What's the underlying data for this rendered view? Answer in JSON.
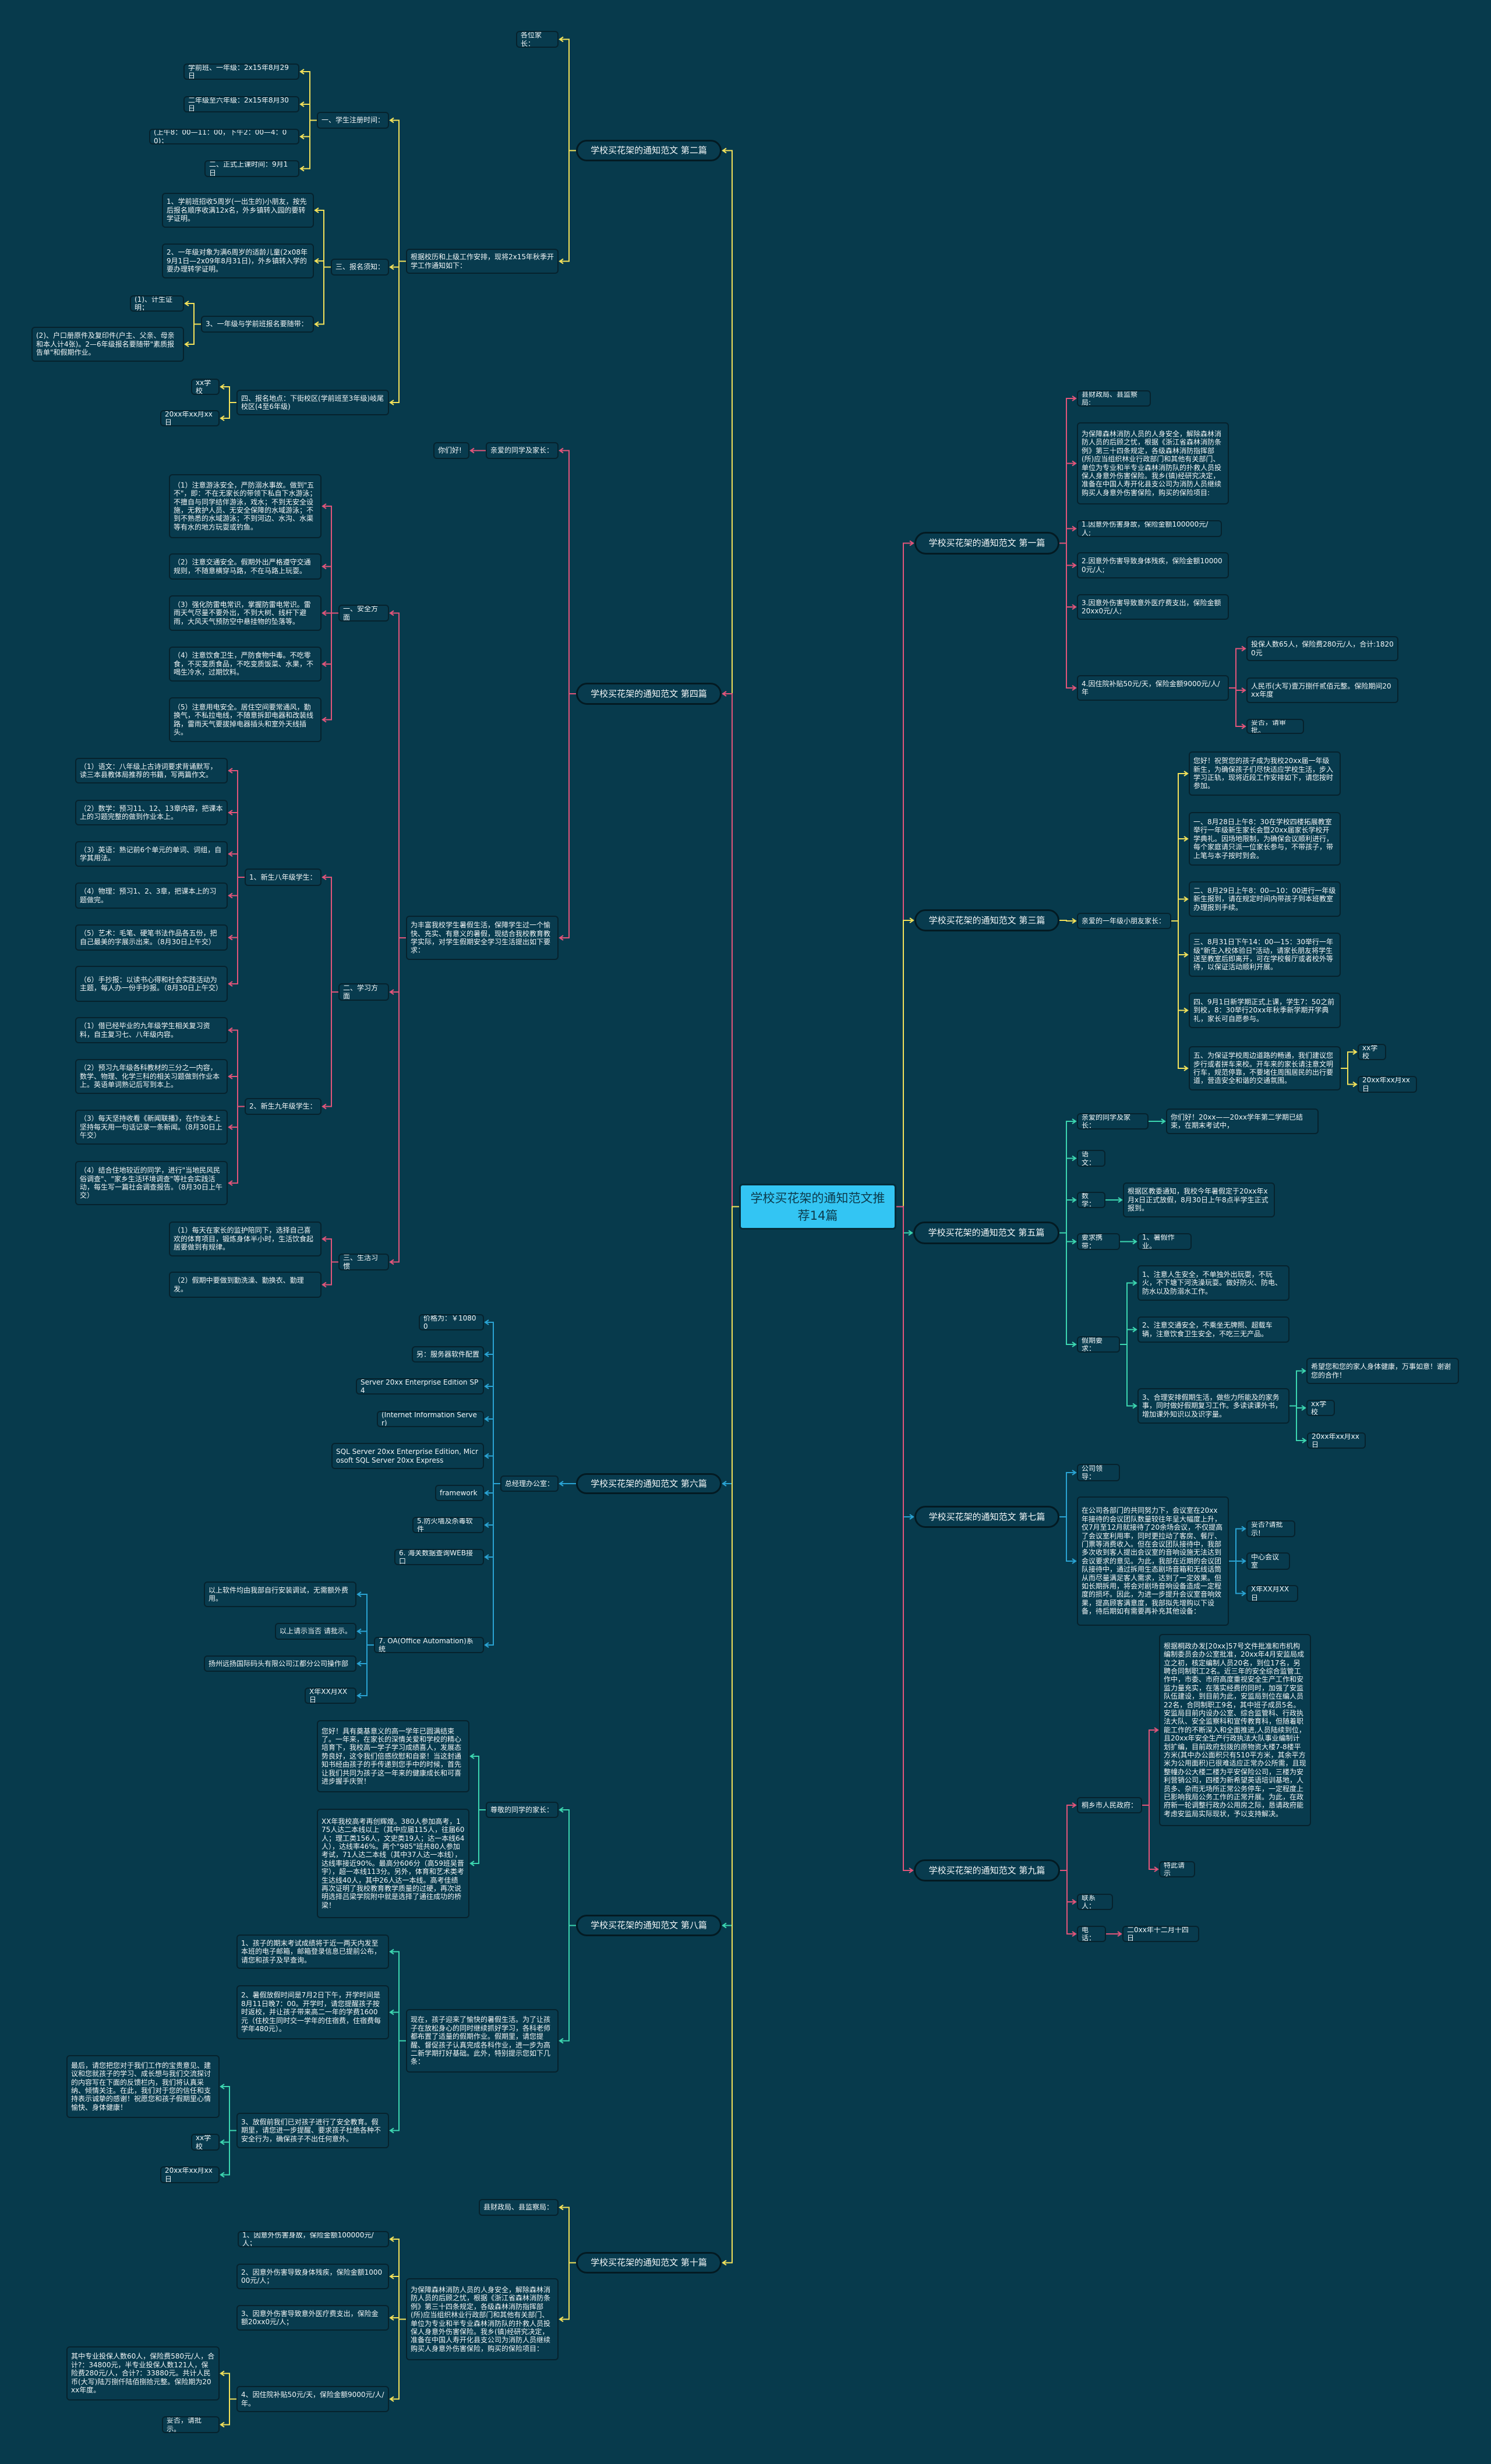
{
  "title": "学校买花架的通知范文推荐14篇",
  "colors": {
    "background": "#073a4c",
    "node_fill": "#083b4e",
    "root_fill": "#33c5f3",
    "b1": "#e2557a",
    "b2": "#f3e15a",
    "b3": "#f3e15a",
    "b4": "#e2557a",
    "b5": "#3cd6b0",
    "b6": "#2aa3d3",
    "b7": "#2aa3d3",
    "b8": "#3cd6b0",
    "b9": "#e2557a",
    "b10": "#f3e15a"
  },
  "b1": {
    "title": "学校买花架的通知范文 第一篇",
    "items": [
      "县财政局、县监察局:",
      "为保障森林消防人员的人身安全，解除森林消防人员的后顾之忧，根据《浙江省森林消防条例》第三十四条规定，各级森林消防指挥部(所)应当组织林业行政部门和其他有关部门、单位为专业和半专业森林消防队的扑救人员投保人身意外伤害保险。我乡(镇)经研究决定，准备在中国人寿开化县支公司为消防人员继续购买人身意外伤害保险，购买的保险项目:",
      "1.因意外伤害身故，保险金额100000元/人;",
      "2.因意外伤害导致身体残疾，保险金额100000元/人;",
      "3.因意外伤害导致意外医疗费支出，保险金额20xx0元/人;",
      "4.因住院补贴50元/天，保险金额9000元/人/年",
      "投保人数65人，保险费280元/人，合计:18200元",
      "人民币(大写)壹万捌仟贰佰元整。保险期间20xx年度",
      "妥否，请审批。"
    ]
  },
  "b2": {
    "title": "学校买花架的通知范文 第二篇",
    "items": [
      "各位家长：",
      "根据校历和上级工作安排，现将2x15年秋季开学工作通知如下：",
      "一、学生注册时间：",
      "学前班、一年级：2x15年8月29日",
      "二年级至六年级：2x15年8月30日",
      "(上午8：00—11：00，下午2：00—4：00)；",
      "二、正式上课时间：9月1日",
      "三、报名须知：",
      "1、学前班招收5周岁(一出生的)小朋友，按先后报名顺序收满12x名，外乡镇转入园的要转学证明。",
      "2、一年级对象为满6周岁的适龄儿童(2x08年9月1日—2x09年8月31日)，外乡镇转入学的要办理转学证明。",
      "3、一年级与学前班报名要随带：",
      "(1)、计生证明；",
      "(2)、户口册原件及复印件(户主、父亲、母亲和本人计4张)。2—6年级报名要随带\"素质报告单\"和假期作业。",
      "四、报名地点：下街校区(学前班至3年级)岐尾校区(4至6年级)",
      "xx学校",
      "20xx年xx月xx日"
    ]
  },
  "b3": {
    "title": "学校买花架的通知范文 第三篇",
    "items": [
      "亲爱的一年级小朋友家长：",
      "您好！祝贺您的孩子成为我校20xx届一年级新生，为确保孩子们尽快适应学校生活，步入学习正轨，现将近段工作安排如下，请您按时参加。",
      "一、8月28日上午8：30在学校四楼拓展教室举行一年级新生家长会暨20xx届家长学校开学典礼。因场地限制，为确保会议顺利进行，每个家庭请只派一位家长参与，不带孩子，带上笔与本子按时到会。",
      "二、8月29日上午8：00—10：00进行一年级新生报到，请在规定时间内带孩子到本班教室办理报到手续。",
      "三、8月31日下午14：00—15：30举行一年级\"新生入校体验日\"活动，请家长朋友将学生送至教室后即离开，可在学校餐厅或者校外等待，以保证活动顺利开展。",
      "四、9月1日新学期正式上课，学生7：50之前到校，8：30举行20xx年秋季新学期开学典礼，家长可自愿参与。",
      "五、为保证学校周边道路的畅通，我们建议您步行或者拼车来校。开车来的家长请注意文明行车，规范停靠，不要堵住周围居民的出行要道，营造安全和谐的交通氛围。",
      "xx学校",
      "20xx年xx月xx日"
    ]
  },
  "b4": {
    "title": "学校买花架的通知范文 第四篇",
    "items": [
      "亲爱的同学及家长：",
      "你们好!",
      "为丰富我校学生暑假生活，保障学生过一个愉快、充实、有意义的暑假，现结合我校教育教学实际，对学生假期安全学习生活提出如下要求：",
      "一、安全方面",
      "（1）注意游泳安全，严防溺水事故。做到\"五不\"，即：不在无家长的带领下私自下水游泳；不擅自与同学结伴游泳，戏水；不到无安全设施，无救护人员、无安全保障的水域游泳；不到不熟悉的水域游泳；不到河边、水沟、水渠等有水的地方玩耍或钓鱼。",
      "（2）注意交通安全。假期外出严格遵守交通规则，不随意横穿马路，不在马路上玩耍。",
      "（3）强化防雷电常识，掌握防雷电常识。雷雨天气尽量不要外出，不到大树、线杆下避雨，大风天气预防空中悬挂物的坠落等。",
      "（4）注意饮食卫生，严防食物中毒。不吃零食，不买变质食品，不吃变质饭菜、水果，不喝生冷水，过期饮料。",
      "（5）注意用电安全。居住空间要常通风，勤换气，不私拉电线，不随意拆卸电器和改装线路，雷雨天气要拔掉电器插头和室外天线插头。",
      "二、学习方面",
      "1、新生八年级学生：",
      "（1）语文：八年级上古诗词要求背诵默写，读三本县教体局推荐的书籍，写两篇作文。",
      "（2）数学：预习11、12、13章内容，把课本上的习题完整的做到作业本上。",
      "（3）英语：熟记前6个单元的单词、词组，自学其用法。",
      "（4）物理：预习1、2、3章，把课本上的习题做完。",
      "（5）艺术：毛笔、硬笔书法作品各五份，把自己最美的字展示出来。（8月30日上午交）",
      "（6）手抄报：以读书心得和社会实践活动为主题，每人办一份手抄报。（8月30日上午交）",
      "2、新生九年级学生：",
      "（1）借已经毕业的九年级学生相关复习资料，自主复习七、八年级内容。",
      "（2）预习九年级各科教材的三分之一内容，数学、物理、化学三科的相关习题做到作业本上。英语单词熟记后写到本上。",
      "（3）每天坚持收看《新闻联播》，在作业本上坚持每天用一句话记录一条新闻。（8月30日上午交）",
      "（4）结合住地较近的同学，进行\"当地民风民俗调查\"、\"家乡生活环境调查\"等社会实践活动，每生写一篇社会调查报告。（8月30日上午交）",
      "三、生活习惯",
      "（1）每天在家长的监护陪同下，选择自己喜欢的体育项目，锻炼身体半小时，生活饮食起居要做到有规律。",
      "（2）假期中要做到勤洗澡、勤换衣、勤理发。"
    ]
  },
  "b5": {
    "title": "学校买花架的通知范文 第五篇",
    "items": [
      "亲爱的同学及家长：",
      "你们好！20xx——20xx学年第二学期已结束，在期末考试中，",
      "语文：",
      "数学：",
      "根据区教委通知，我校今年暑假定于20xx年x月x日正式放假，8月30日上午8点半学生正式报到。",
      "要求携带：",
      "1、暑假作业。",
      "假期要求：",
      "1、注意人生安全，不单独外出玩耍，不玩火，不下塘下河洗澡玩耍。做好防火、防电、防水以及防溺水工作。",
      "2、注意交通安全，不乘坐无牌照、超载车辆，注意饮食卫生安全，不吃三无产品。",
      "3、合理安排假期生活，做些力所能及的家务事，同时做好假期复习工作。多读读课外书，增加课外知识以及识字量。",
      "希望您和您的家人身体健康，万事如意！谢谢您的合作！",
      "xx学校",
      "20xx年xx月xx日"
    ]
  },
  "b6": {
    "title": "学校买花架的通知范文 第六篇",
    "items": [
      "总经理办公室：",
      "价格为：￥10800",
      "另：服务器软件配置",
      "Server 20xx Enterprise Edition SP4",
      "(Internet Information Server)",
      "SQL Server 20xx Enterprise Edition, Microsoft SQL Server 20xx Express",
      "framework",
      "5.防火墙及杀毒软件",
      "6. 海关数据查询WEB接口",
      "7. OA(Office Automation)系统",
      "以上软件均由我部自行安装调试，无需额外费用。",
      "以上请示当否 请批示。",
      "扬州远扬国际码头有限公司江都分公司操作部",
      "X年XX月XX日"
    ]
  },
  "b7": {
    "title": "学校买花架的通知范文 第七篇",
    "items": [
      "公司领导：",
      "在公司各部门的共同努力下，会议室在20xx年接待的会议团队数量较往年呈大幅度上升，仅7月至12月就接待了20余场会议，不仅提高了会议室利用率，同时更拉动了客房、餐厅、门票等消费收入。但在会议团队接待中，我部多次收到客人提出会议室的音响设施无法达到会议要求的意见。为此，我部在近期的会议团队接待中，通过拆用生态剧场音箱和无线话筒从而尽量满足客人需求，达到了一定效果。但如长期拆用，将会对剧场音响设备造成一定程度的损坏。因此，为进一步提升会议室音响效果，提高顾客满意度，我部拟先增购以下设备，待后期如有需要再补充其他设备：",
      "妥否?请批示!",
      "中心会议室",
      "X年XX月XX日"
    ]
  },
  "b8": {
    "title": "学校买花架的通知范文 第八篇",
    "items": [
      "尊敬的同学的家长：",
      "您好！具有奠基意义的高一学年已圆满结束了。一年来，在家长的深情关爱和学校的精心培育下，我校高一学子学习成绩喜人，发展态势良好，这令我们倍感欣慰和自豪！当这封通知书经由孩子的手传递到您手中的时候，首先让我们共同为孩子这一年来的健康成长和可喜进步握手庆贺！",
      "XX年我校高考再创辉煌。380人参加高考，175人达二本线以上（其中应届115人，往届60人；理工类156人，文史类19人；达一本线64人），达线率46%。两个\"985\"班共80人参加考试，71人达二本线（其中37人达一本线），达线率接近90%。最高分606分（高59班吴晋宇），超一本线113分。另外，体育和艺术类考生达线40人，其中26人达一本线。高考佳绩再次证明了我校教育教学质量的过硬，再次说明选择吕梁学院附中就是选择了通往成功的桥梁！",
      "现在，孩子迎来了愉快的暑假生活。为了让孩子在放松身心的同时继续抓好学习，各科老师都布置了适量的假期作业。假期里，请您提醒、督促孩子认真完成各科作业，进一步为高二新学期打好基础。此外，特别提示您如下几条：",
      "1、孩子的期末考试成绩将于近一两天内发至本班的电子邮箱，邮箱登录信息已提前公布，请您和孩子及早查询。",
      "2、暑假放假时间是7月2日下午，开学时间是8月11日晚7：00。开学时，请您提醒孩子按时返校，并让孩子带来高二一年的学费1600元（住校生同时交一学年的住宿费，住宿费每学年480元）。",
      "3、放假前我们已对孩子进行了安全教育。假期里，请您进一步提醒、要求孩子杜绝各种不安全行为，确保孩子不出任何意外。",
      "最后，请您把您对于我们工作的宝贵意见、建议和您就孩子的学习、成长想与我们交流探讨的内容写在下面的反馈栏内，我们将认真采纳、倾情关注。在此，我们对于您的信任和支持表示诚挚的感谢！祝愿您和孩子假期里心情愉快、身体健康！",
      "xx学校",
      "20xx年xx月xx日"
    ]
  },
  "b9": {
    "title": "学校买花架的通知范文 第九篇",
    "items": [
      "桐乡市人民政府：",
      "根据桐政办发[20xx]57号文件批准和市机构编制委员会办公室批准，20xx年4月安监局成立之初，核定编制人员20名，到位17名，另聘合同制职工2名。近三年的安全综合监管工作中，市委、市府高度重视安全生产工作和安监力量充实，在落实经费的同时，加强了安监队伍建设，到目前为此，安监局到位在编人员22名，合同制职工9名，其中班子成员5名。安监局目前内设办公室、综合监管科、行政执法大队、安全监察科和宣传教育科，但随着职能工作的不断深入和全面推进,人员陆续到位，且20xx年安全生产行政执法大队事业编制计划扩编，目前政府划拨的原物资大楼7-8楼平方米(其中办公面积只有510平方米，其余平方米为公用面积)已很难适应正常办公所需，且现整幢办公大楼二楼为平安保险公司，三楼为安利营销公司，四楼为新希望英语培训基地，人员多、杂而无场所正常公务停车，一定程度上已影响我局公务工作的正常开展。为此，在政府新一轮调整行政办公用房之际，恳请政府能考虑安监局实际现状，予以支持解决。",
      "特此请示",
      "联系人：",
      "电话：",
      "二0xx年十二月十四日"
    ]
  },
  "b10": {
    "title": "学校买花架的通知范文 第十篇",
    "items": [
      "县财政局、县监察局：",
      "为保障森林消防人员的人身安全，解除森林消防人员的后顾之忧，根据《浙江省森林消防条例》第三十四条规定，各级森林消防指挥部(所)应当组织林业行政部门和其他有关部门、单位为专业和半专业森林消防队的扑救人员投保人身意外伤害保险。我乡(镇)经研究决定，准备在中国人寿开化县支公司为消防人员继续购买人身意外伤害保险，购买的保险项目：",
      "1、因意外伤害身故，保险金额100000元/人；",
      "2、因意外伤害导致身体残疾，保险金额100000元/人；",
      "3、因意外伤害导致意外医疗费支出，保险金额20xx0元/人；",
      "4、因住院补贴50元/天，保险金额9000元/人/年。",
      "其中专业投保人数60人，保险费580元/人，合计?：34800元，半专业投保人数121人，保险费280元/人，合计?：33880元。共计人民币(大写)陆万捌仟陆佰捌拾元整。保险期为20xx年度。",
      "妥否，请批示。"
    ]
  }
}
